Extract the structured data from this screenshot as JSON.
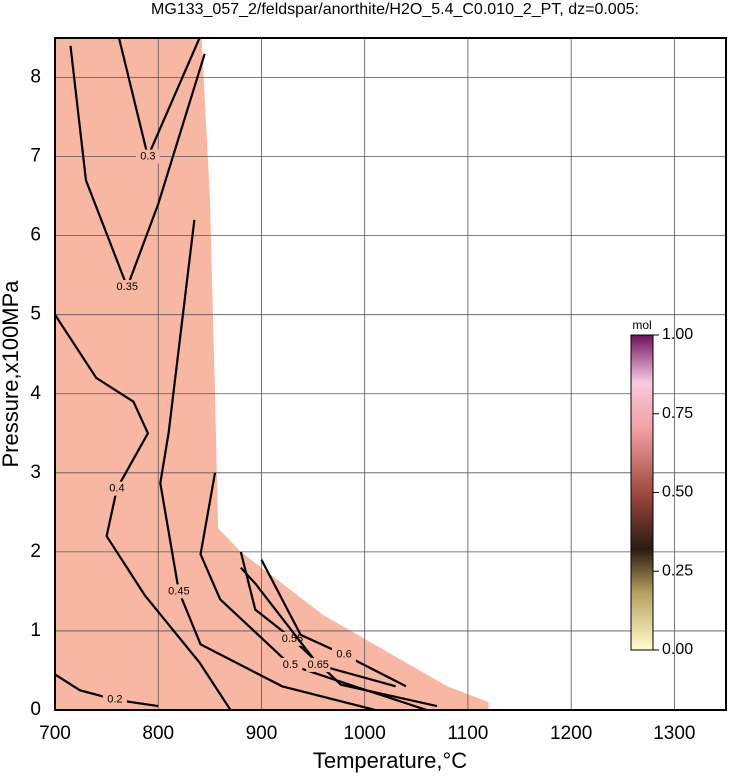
{
  "chart_data": {
    "type": "contour",
    "title": "MG133_057_2/feldspar/anorthite/H2O_5.4_C0.010_2_PT, dz=0.005:",
    "xlabel": "Temperature,°C",
    "ylabel": "Pressure,x100MPa",
    "xlim": [
      700,
      1350
    ],
    "ylim": [
      0,
      8.5
    ],
    "xticks": [
      700,
      800,
      900,
      1000,
      1100,
      1200,
      1300
    ],
    "yticks": [
      0,
      1,
      2,
      3,
      4,
      5,
      6,
      7,
      8
    ],
    "grid": true,
    "domain": {
      "color": "#f8b7a2",
      "T": [
        700,
        700,
        842,
        850,
        855,
        858,
        880,
        920,
        960,
        1000,
        1040,
        1080,
        1120,
        1120
      ],
      "P": [
        0,
        8.5,
        8.5,
        6.5,
        4,
        2.3,
        2.0,
        1.6,
        1.2,
        0.9,
        0.6,
        0.3,
        0.1,
        0
      ]
    },
    "contours": [
      {
        "level": 0.2,
        "T": [
          700,
          724,
          758,
          800
        ],
        "P": [
          0.45,
          0.25,
          0.13,
          0.05
        ]
      },
      {
        "level": 0.3,
        "T": [
          762,
          790,
          840
        ],
        "P": [
          8.5,
          7.0,
          8.5
        ]
      },
      {
        "level": 0.35,
        "T": [
          715,
          730,
          770,
          800,
          845
        ],
        "P": [
          8.4,
          6.7,
          5.35,
          6.4,
          8.3
        ]
      },
      {
        "level": 0.4,
        "T": [
          700,
          740,
          776,
          790,
          760,
          750,
          787,
          840,
          870
        ],
        "P": [
          5.0,
          4.2,
          3.9,
          3.5,
          2.8,
          2.2,
          1.45,
          0.6,
          0
        ]
      },
      {
        "level": 0.45,
        "T": [
          835,
          810,
          802,
          820,
          841,
          920,
          1010
        ],
        "P": [
          6.2,
          3.5,
          2.87,
          1.5,
          0.83,
          0.3,
          0
        ]
      },
      {
        "level": 0.5,
        "T": [
          855,
          841,
          860,
          928,
          990,
          1060
        ],
        "P": [
          3.0,
          1.97,
          1.4,
          0.57,
          0.3,
          0
        ]
      },
      {
        "level": 0.55,
        "T": [
          880,
          894,
          930,
          977,
          1070
        ],
        "P": [
          2.0,
          1.27,
          0.9,
          0.32,
          0.05
        ]
      },
      {
        "level": 0.6,
        "T": [
          900,
          938,
          980,
          1040
        ],
        "P": [
          1.9,
          0.95,
          0.7,
          0.3
        ]
      },
      {
        "level": 0.65,
        "T": [
          880,
          894,
          955,
          1030
        ],
        "P": [
          1.8,
          1.6,
          0.57,
          0.3
        ]
      }
    ],
    "colorbar": {
      "label": "mol",
      "lim": [
        0,
        1
      ],
      "ticks": [
        {
          "value": 0,
          "label": "0.00"
        },
        {
          "value": 0.25,
          "label": "0.25"
        },
        {
          "value": 0.5,
          "label": "0.50"
        },
        {
          "value": 0.75,
          "label": "0.75"
        },
        {
          "value": 1,
          "label": "1.00"
        }
      ]
    }
  }
}
